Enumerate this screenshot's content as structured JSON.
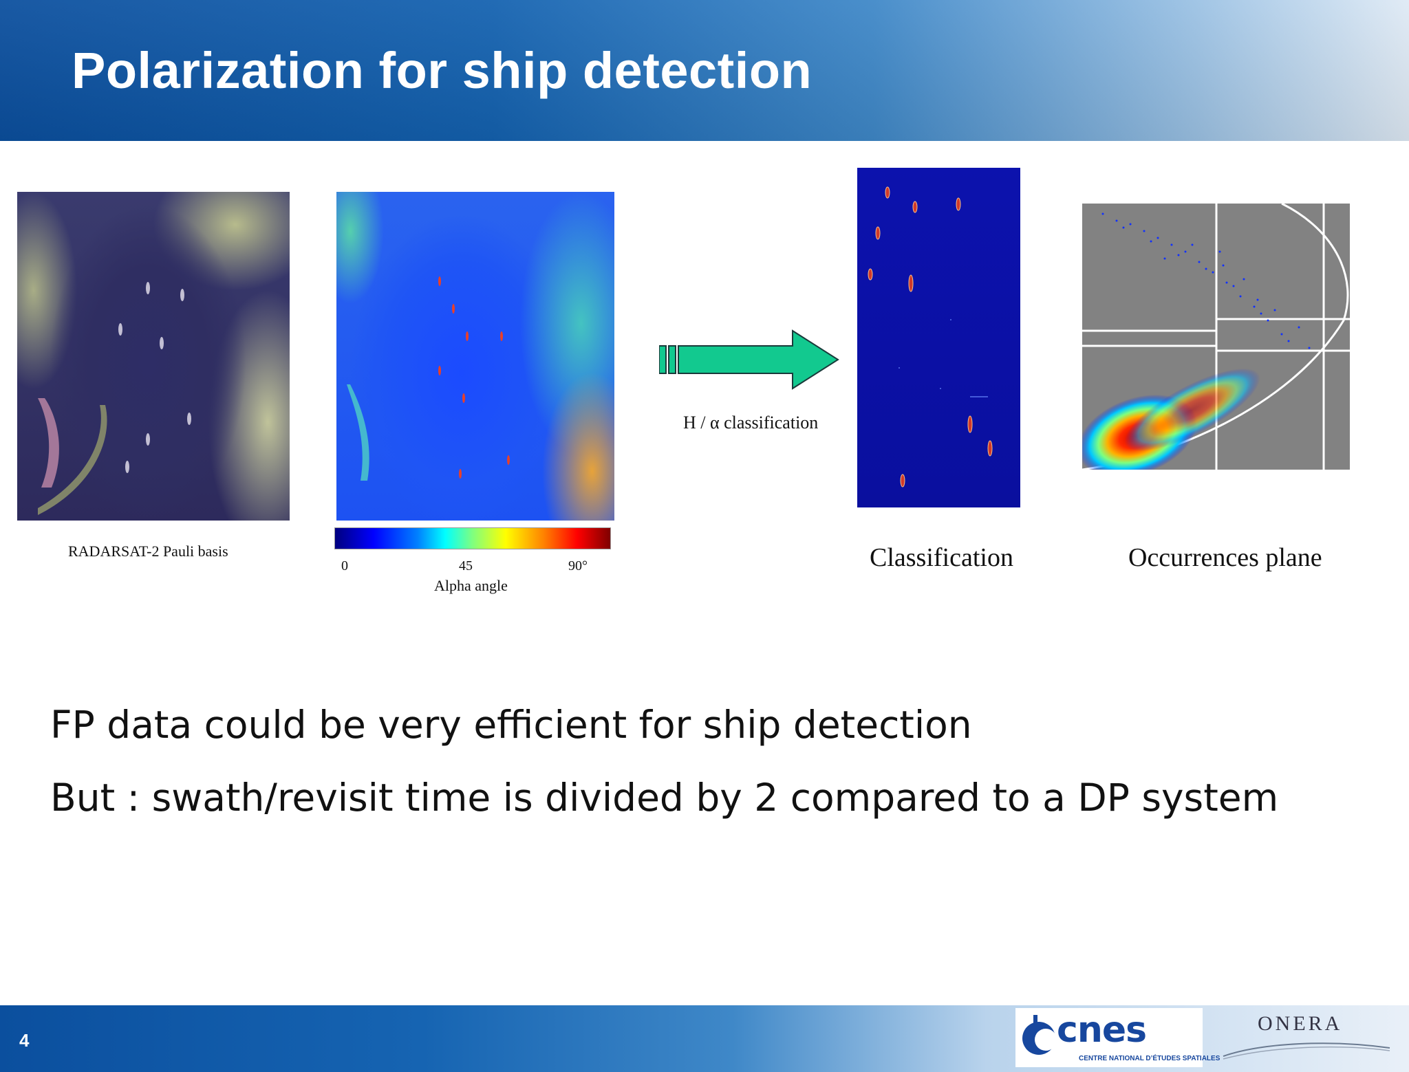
{
  "slide": {
    "title": "Polarization for ship detection",
    "page_number": "4"
  },
  "figures": {
    "pauli": {
      "caption": "RADARSAT-2 Pauli basis"
    },
    "alpha": {
      "colorbar_ticks": [
        "0",
        "45",
        "90°"
      ],
      "colorbar_label": "Alpha angle"
    },
    "arrow": {
      "label": "H / α classification"
    },
    "classification": {
      "caption": "Classification"
    },
    "occurrences": {
      "caption": "Occurrences plane"
    }
  },
  "bullets": [
    "FP data could be very efficient for ship detection",
    "But : swath/revisit time is divided by 2 compared to a DP system"
  ],
  "logos": {
    "cnes": {
      "word": "cnes",
      "subtitle": "CENTRE NATIONAL D’ÉTUDES SPATIALES"
    },
    "onera": {
      "word": "ONERA"
    }
  },
  "colors": {
    "header_blue": "#0b4f9e",
    "arrow_green": "#12c98f",
    "cnes_blue": "#17479e"
  }
}
